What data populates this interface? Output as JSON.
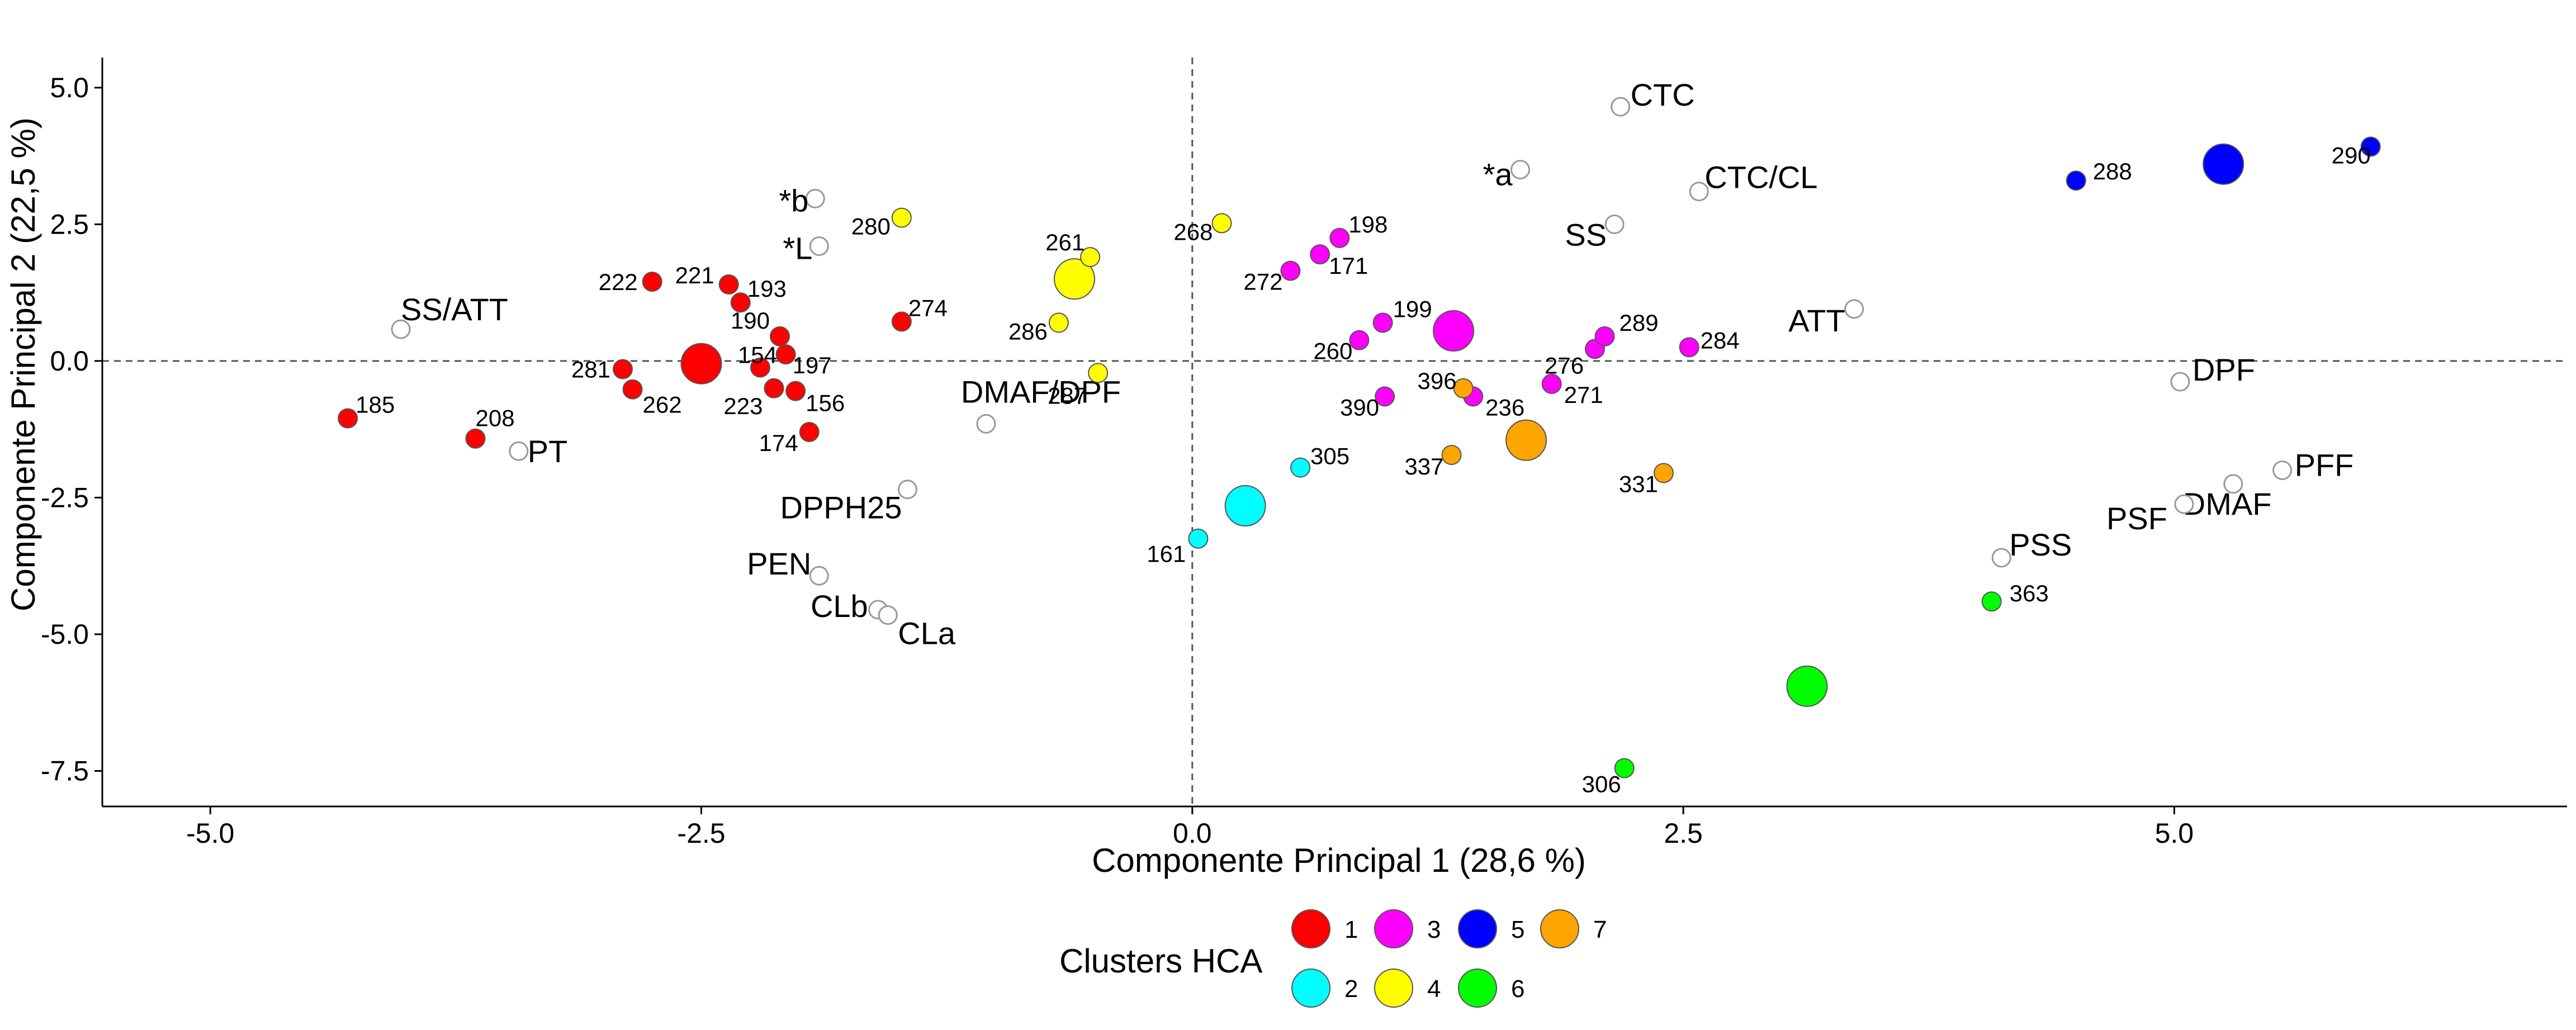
{
  "chart_data": {
    "type": "scatter",
    "title": "",
    "xlabel": "Componente Principal 1 (28,6 %)",
    "ylabel": "Componente Principal 2 (22,5 %)",
    "xlim": [
      -5.55,
      7.0
    ],
    "ylim": [
      -8.15,
      5.55
    ],
    "x_ticks": [
      -5.0,
      -2.5,
      0.0,
      2.5,
      5.0
    ],
    "x_tick_labels": [
      "-5.0",
      "-2.5",
      "0.0",
      "2.5",
      "5.0"
    ],
    "y_ticks": [
      -7.5,
      -5.0,
      -2.5,
      0.0,
      2.5,
      5.0
    ],
    "y_tick_labels": [
      "-7.5",
      "-5.0",
      "-2.5",
      "0.0",
      "2.5",
      "5.0"
    ],
    "grid": false,
    "reference_lines": {
      "x": 0,
      "y": 0,
      "style": "dashed"
    },
    "legend": {
      "title": "Clusters HCA",
      "placement": "bottom",
      "entries": [
        {
          "label": "1",
          "color": "#ff0000"
        },
        {
          "label": "2",
          "color": "#00ffff"
        },
        {
          "label": "3",
          "color": "#ff00ff"
        },
        {
          "label": "4",
          "color": "#ffff00"
        },
        {
          "label": "5",
          "color": "#0000ff"
        },
        {
          "label": "6",
          "color": "#00ff00"
        },
        {
          "label": "7",
          "color": "#ffa500"
        }
      ]
    },
    "cluster_colors": {
      "1": "#ff0000",
      "2": "#00ffff",
      "3": "#ff00ff",
      "4": "#ffff00",
      "5": "#0000ff",
      "6": "#00ff00",
      "7": "#ffa500"
    },
    "centroids": [
      {
        "cluster": "1",
        "x": -2.5,
        "y": -0.05
      },
      {
        "cluster": "2",
        "x": 0.27,
        "y": -2.65
      },
      {
        "cluster": "3",
        "x": 1.33,
        "y": 0.55
      },
      {
        "cluster": "4",
        "x": -0.6,
        "y": 1.5
      },
      {
        "cluster": "5",
        "x": 5.25,
        "y": 3.6
      },
      {
        "cluster": "6",
        "x": 3.13,
        "y": -5.95
      },
      {
        "cluster": "7",
        "x": 1.7,
        "y": -1.45
      }
    ],
    "samples": [
      {
        "label": "185",
        "cluster": "1",
        "x": -4.3,
        "y": -1.05
      },
      {
        "label": "208",
        "cluster": "1",
        "x": -3.65,
        "y": -1.42
      },
      {
        "label": "281",
        "cluster": "1",
        "x": -2.9,
        "y": -0.15
      },
      {
        "label": "262",
        "cluster": "1",
        "x": -2.85,
        "y": -0.52
      },
      {
        "label": "222",
        "cluster": "1",
        "x": -2.75,
        "y": 1.45
      },
      {
        "label": "221",
        "cluster": "1",
        "x": -2.36,
        "y": 1.4
      },
      {
        "label": "193",
        "cluster": "1",
        "x": -2.3,
        "y": 1.07
      },
      {
        "label": "154",
        "cluster": "1",
        "x": -2.2,
        "y": -0.12
      },
      {
        "label": "190",
        "cluster": "1",
        "x": -2.1,
        "y": 0.45
      },
      {
        "label": "197",
        "cluster": "1",
        "x": -2.07,
        "y": 0.12
      },
      {
        "label": "223",
        "cluster": "1",
        "x": -2.13,
        "y": -0.5
      },
      {
        "label": "156",
        "cluster": "1",
        "x": -2.02,
        "y": -0.55
      },
      {
        "label": "174",
        "cluster": "1",
        "x": -1.95,
        "y": -1.3
      },
      {
        "label": "274",
        "cluster": "1",
        "x": -1.48,
        "y": 0.72
      },
      {
        "label": "305",
        "cluster": "2",
        "x": 0.55,
        "y": -1.95
      },
      {
        "label": "161",
        "cluster": "2",
        "x": 0.03,
        "y": -3.25
      },
      {
        "label": "198",
        "cluster": "3",
        "x": 0.75,
        "y": 2.25
      },
      {
        "label": "171",
        "cluster": "3",
        "x": 0.65,
        "y": 1.95
      },
      {
        "label": "272",
        "cluster": "3",
        "x": 0.5,
        "y": 1.65
      },
      {
        "label": "199",
        "cluster": "3",
        "x": 0.97,
        "y": 0.7
      },
      {
        "label": "260",
        "cluster": "3",
        "x": 0.85,
        "y": 0.38
      },
      {
        "label": "390",
        "cluster": "3",
        "x": 0.98,
        "y": -0.65
      },
      {
        "label": "236",
        "cluster": "3",
        "x": 1.43,
        "y": -0.65
      },
      {
        "label": "271",
        "cluster": "3",
        "x": 1.83,
        "y": -0.42
      },
      {
        "label": "276",
        "cluster": "3",
        "x": 2.05,
        "y": 0.22
      },
      {
        "label": "289",
        "cluster": "3",
        "x": 2.1,
        "y": 0.45
      },
      {
        "label": "284",
        "cluster": "3",
        "x": 2.53,
        "y": 0.25
      },
      {
        "label": "280",
        "cluster": "4",
        "x": -1.48,
        "y": 2.62
      },
      {
        "label": "261",
        "cluster": "4",
        "x": -0.52,
        "y": 1.9
      },
      {
        "label": "286",
        "cluster": "4",
        "x": -0.68,
        "y": 0.7
      },
      {
        "label": "287",
        "cluster": "4",
        "x": -0.48,
        "y": -0.22
      },
      {
        "label": "268",
        "cluster": "4",
        "x": 0.15,
        "y": 2.52
      },
      {
        "label": "288",
        "cluster": "5",
        "x": 4.5,
        "y": 3.3
      },
      {
        "label": "290",
        "cluster": "5",
        "x": 6.0,
        "y": 3.92
      },
      {
        "label": "363",
        "cluster": "6",
        "x": 4.07,
        "y": -4.4
      },
      {
        "label": "306",
        "cluster": "6",
        "x": 2.2,
        "y": -7.45
      },
      {
        "label": "396",
        "cluster": "7",
        "x": 1.38,
        "y": -0.5
      },
      {
        "label": "337",
        "cluster": "7",
        "x": 1.32,
        "y": -1.72
      },
      {
        "label": "331",
        "cluster": "7",
        "x": 2.4,
        "y": -2.05
      }
    ],
    "variables": [
      {
        "label": "CTC",
        "x": 2.18,
        "y": 4.65
      },
      {
        "label": "*a",
        "x": 1.67,
        "y": 3.5
      },
      {
        "label": "CTC/CL",
        "x": 2.58,
        "y": 3.1
      },
      {
        "label": "SS",
        "x": 2.15,
        "y": 2.5
      },
      {
        "label": "ATT",
        "x": 3.37,
        "y": 0.95
      },
      {
        "label": "DPF",
        "x": 5.03,
        "y": -0.38
      },
      {
        "label": "PFF",
        "x": 5.55,
        "y": -2.0
      },
      {
        "label": "DMAF",
        "x": 5.3,
        "y": -2.25
      },
      {
        "label": "PSF",
        "x": 5.05,
        "y": -2.62
      },
      {
        "label": "PSS",
        "x": 4.12,
        "y": -3.6
      },
      {
        "label": "*b",
        "x": -1.92,
        "y": 2.97
      },
      {
        "label": "*L",
        "x": -1.9,
        "y": 2.1
      },
      {
        "label": "SS/ATT",
        "x": -4.03,
        "y": 0.58
      },
      {
        "label": "PT",
        "x": -3.43,
        "y": -1.65
      },
      {
        "label": "DMAF/DPF",
        "x": -1.05,
        "y": -1.15
      },
      {
        "label": "DPPH25",
        "x": -1.45,
        "y": -2.35
      },
      {
        "label": "PEN",
        "x": -1.9,
        "y": -3.93
      },
      {
        "label": "CLb",
        "x": -1.6,
        "y": -4.55
      },
      {
        "label": "CLa",
        "x": -1.55,
        "y": -4.65
      }
    ]
  }
}
